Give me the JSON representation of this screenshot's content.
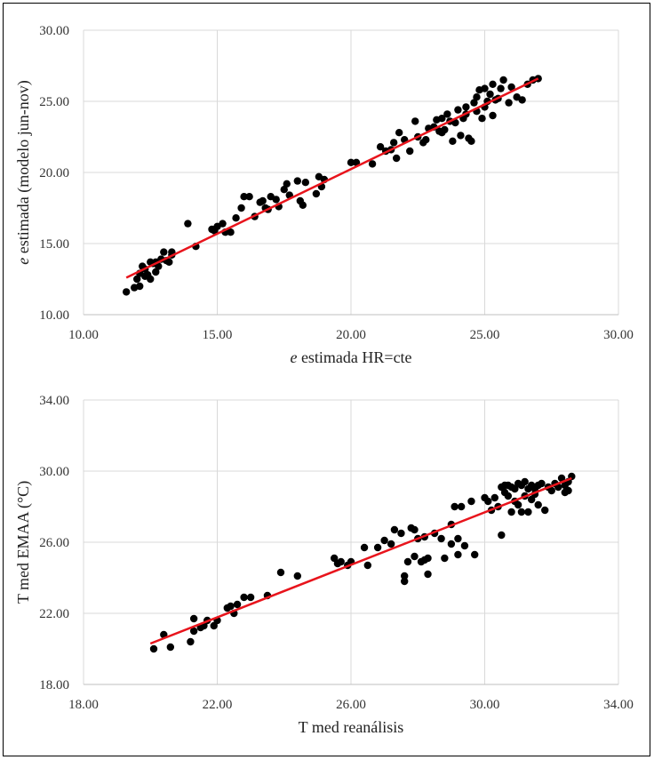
{
  "chart_data": [
    {
      "type": "scatter",
      "title": "",
      "xlabel_italic": "e",
      "xlabel": " estimada HR=cte",
      "ylabel_italic": "e",
      "ylabel": " estimada (modelo jun-nov)",
      "xlim": [
        10,
        30
      ],
      "ylim": [
        10,
        30
      ],
      "xticks": [
        10,
        15,
        20,
        25,
        30
      ],
      "yticks": [
        10,
        15,
        20,
        25,
        30
      ],
      "xtick_labels": [
        "10.00",
        "15.00",
        "20.00",
        "25.00",
        "30.00"
      ],
      "ytick_labels": [
        "10.00",
        "15.00",
        "20.00",
        "25.00",
        "30.00"
      ],
      "grid": true,
      "point_color": "#000000",
      "trend_color": "#e8141c",
      "trendline": {
        "x": [
          11.6,
          27.0
        ],
        "y": [
          12.6,
          26.6
        ]
      },
      "series": [
        {
          "name": "points",
          "x": [
            11.6,
            11.9,
            12.0,
            12.1,
            12.1,
            12.2,
            12.3,
            12.3,
            12.4,
            12.5,
            12.5,
            12.6,
            12.7,
            12.7,
            12.8,
            12.9,
            13.0,
            13.1,
            13.2,
            13.3,
            13.3,
            13.9,
            14.2,
            14.8,
            14.9,
            15.0,
            15.2,
            15.3,
            15.5,
            15.7,
            15.9,
            16.0,
            16.2,
            16.4,
            16.6,
            16.7,
            16.8,
            16.9,
            17.0,
            17.2,
            17.3,
            17.5,
            17.6,
            17.7,
            18.0,
            18.1,
            18.2,
            18.3,
            18.7,
            18.8,
            18.9,
            19.0,
            20.0,
            20.2,
            20.8,
            21.1,
            21.3,
            21.5,
            21.6,
            21.7,
            21.8,
            22.0,
            22.2,
            22.4,
            22.5,
            22.7,
            22.8,
            22.9,
            23.1,
            23.2,
            23.3,
            23.4,
            23.4,
            23.5,
            23.6,
            23.7,
            23.8,
            23.9,
            24.0,
            24.1,
            24.2,
            24.3,
            24.3,
            24.4,
            24.5,
            24.6,
            24.7,
            24.7,
            24.8,
            24.9,
            25.0,
            25.0,
            25.1,
            25.2,
            25.3,
            25.3,
            25.4,
            25.5,
            25.6,
            25.7,
            25.9,
            26.0,
            26.2,
            26.4,
            26.6,
            26.8,
            27.0
          ],
          "y": [
            11.6,
            11.9,
            12.5,
            12.0,
            12.9,
            13.4,
            12.7,
            13.2,
            12.8,
            12.5,
            13.7,
            13.6,
            13.0,
            13.7,
            13.4,
            13.9,
            14.4,
            13.8,
            13.7,
            14.2,
            14.4,
            16.4,
            14.8,
            16.0,
            15.9,
            16.2,
            16.4,
            15.8,
            15.8,
            16.8,
            17.5,
            18.3,
            18.3,
            16.9,
            17.9,
            18.0,
            17.5,
            17.4,
            18.3,
            18.1,
            17.6,
            18.8,
            19.2,
            18.4,
            19.4,
            18.0,
            17.7,
            19.3,
            18.5,
            19.7,
            19.0,
            19.5,
            20.7,
            20.7,
            20.6,
            21.8,
            21.5,
            21.6,
            22.1,
            21.0,
            22.8,
            22.3,
            21.5,
            23.6,
            22.5,
            22.1,
            22.3,
            23.1,
            23.2,
            23.7,
            22.9,
            23.8,
            22.8,
            23.0,
            24.1,
            23.6,
            22.2,
            23.5,
            24.4,
            22.6,
            23.8,
            24.6,
            24.1,
            22.4,
            22.2,
            24.9,
            24.3,
            25.3,
            25.8,
            23.8,
            25.9,
            24.6,
            25.0,
            25.5,
            26.2,
            24.0,
            25.1,
            25.2,
            25.9,
            26.5,
            24.9,
            26.0,
            25.3,
            25.1,
            26.2,
            26.5,
            26.6
          ]
        }
      ]
    },
    {
      "type": "scatter",
      "title": "",
      "xlabel": "T med reanálisis",
      "ylabel": "T med EMAA (°C)",
      "xlim": [
        18,
        34
      ],
      "ylim": [
        18,
        34
      ],
      "xticks": [
        18,
        22,
        26,
        30,
        34
      ],
      "yticks": [
        18,
        22,
        26,
        30,
        34
      ],
      "xtick_labels": [
        "18.00",
        "22.00",
        "26.00",
        "30.00",
        "34.00"
      ],
      "ytick_labels": [
        "18.00",
        "22.00",
        "26.00",
        "30.00",
        "34.00"
      ],
      "grid": true,
      "point_color": "#000000",
      "trend_color": "#e8141c",
      "trendline": {
        "x": [
          20.0,
          32.6
        ],
        "y": [
          20.3,
          29.6
        ]
      },
      "series": [
        {
          "name": "points",
          "x": [
            20.1,
            20.4,
            20.6,
            21.2,
            21.3,
            21.3,
            21.5,
            21.6,
            21.7,
            21.9,
            22.0,
            22.3,
            22.4,
            22.5,
            22.6,
            22.8,
            23.0,
            23.5,
            23.9,
            24.4,
            25.5,
            25.6,
            25.7,
            25.9,
            26.0,
            26.4,
            26.5,
            26.8,
            27.0,
            27.2,
            27.3,
            27.5,
            27.6,
            27.6,
            27.7,
            27.8,
            27.9,
            27.9,
            28.0,
            28.1,
            28.2,
            28.2,
            28.3,
            28.3,
            28.5,
            28.7,
            28.8,
            29.0,
            29.0,
            29.1,
            29.2,
            29.2,
            29.3,
            29.4,
            29.6,
            29.7,
            30.0,
            30.1,
            30.2,
            30.3,
            30.4,
            30.5,
            30.5,
            30.6,
            30.6,
            30.7,
            30.7,
            30.8,
            30.8,
            30.9,
            30.9,
            31.0,
            31.0,
            31.1,
            31.1,
            31.2,
            31.2,
            31.3,
            31.3,
            31.4,
            31.4,
            31.5,
            31.5,
            31.6,
            31.6,
            31.7,
            31.8,
            31.9,
            32.0,
            32.1,
            32.2,
            32.3,
            32.4,
            32.4,
            32.5,
            32.5,
            32.6
          ],
          "y": [
            20.0,
            20.8,
            20.1,
            20.4,
            21.0,
            21.7,
            21.2,
            21.3,
            21.6,
            21.3,
            21.6,
            22.3,
            22.4,
            22.0,
            22.5,
            22.9,
            22.9,
            23.0,
            24.3,
            24.1,
            25.1,
            24.8,
            24.9,
            24.7,
            24.9,
            25.7,
            24.7,
            25.7,
            26.1,
            25.9,
            26.7,
            26.5,
            23.8,
            24.1,
            24.9,
            26.8,
            26.7,
            25.2,
            26.2,
            24.9,
            25.0,
            26.3,
            25.1,
            24.2,
            26.5,
            26.2,
            25.1,
            27.0,
            25.9,
            28.0,
            25.3,
            26.2,
            28.0,
            25.8,
            28.3,
            25.3,
            28.5,
            28.3,
            27.8,
            28.5,
            28.0,
            26.4,
            29.1,
            29.2,
            28.8,
            29.2,
            28.6,
            29.1,
            27.7,
            29.0,
            28.3,
            29.3,
            28.1,
            29.2,
            27.7,
            29.4,
            28.6,
            29.0,
            27.7,
            29.2,
            28.4,
            29.0,
            28.7,
            29.2,
            28.1,
            29.3,
            27.8,
            29.1,
            28.9,
            29.3,
            29.1,
            29.6,
            29.2,
            28.8,
            29.4,
            28.9,
            29.7
          ]
        }
      ]
    }
  ]
}
